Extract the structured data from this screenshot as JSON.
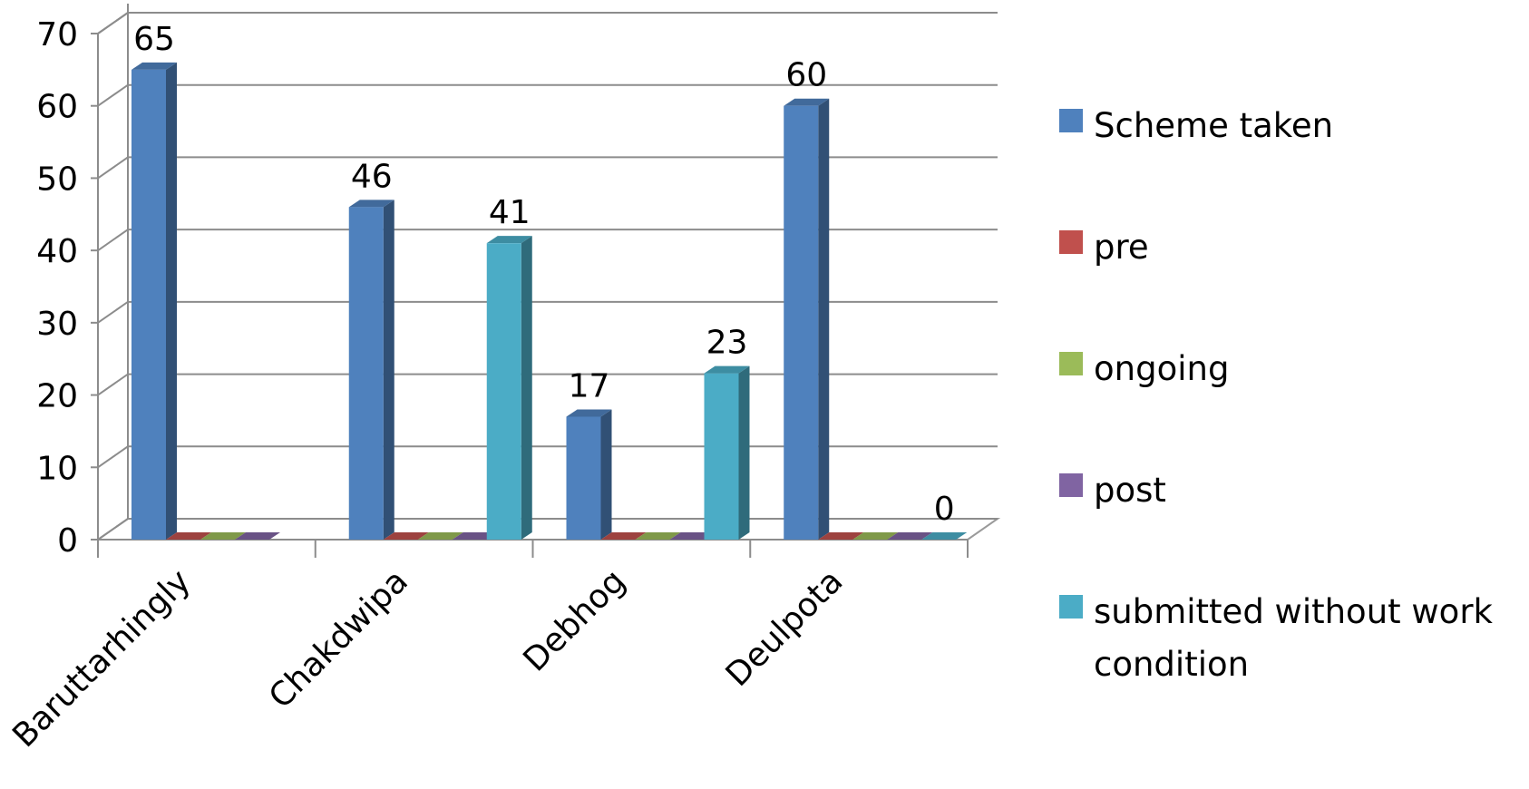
{
  "chart_data": {
    "type": "bar",
    "categories": [
      "Baruttarhingly",
      "Chakdwipa",
      "Debhog",
      "Deulpota"
    ],
    "series": [
      {
        "name": "Scheme taken",
        "color": "#4F81BD",
        "values": [
          65,
          46,
          17,
          60
        ]
      },
      {
        "name": "pre",
        "color": "#C0504D",
        "values": [
          0,
          0,
          0,
          0
        ]
      },
      {
        "name": "ongoing",
        "color": "#9BBB59",
        "values": [
          0,
          0,
          0,
          0
        ]
      },
      {
        "name": "post",
        "color": "#8064A2",
        "values": [
          0,
          0,
          0,
          0
        ]
      },
      {
        "name": "submitted without work condition",
        "color": "#4BACC6",
        "values": [
          null,
          41,
          23,
          0
        ]
      }
    ],
    "data_labels": [
      {
        "category": "Baruttarhingly",
        "series": "Scheme taken",
        "text": "65"
      },
      {
        "category": "Chakdwipa",
        "series": "Scheme taken",
        "text": "46"
      },
      {
        "category": "Chakdwipa",
        "series": "submitted without work condition",
        "text": "41"
      },
      {
        "category": "Debhog",
        "series": "Scheme taken",
        "text": "17"
      },
      {
        "category": "Debhog",
        "series": "submitted without work condition",
        "text": "23"
      },
      {
        "category": "Deulpota",
        "series": "Scheme taken",
        "text": "60"
      },
      {
        "category": "Deulpota",
        "series": "submitted without work condition",
        "text": "0"
      }
    ],
    "ylim": [
      0,
      70
    ],
    "yticks": [
      "0",
      "10",
      "20",
      "30",
      "40",
      "50",
      "60",
      "70"
    ],
    "grid": true,
    "three_d": true,
    "legend_position": "right",
    "title": "",
    "xlabel": "",
    "ylabel": ""
  }
}
